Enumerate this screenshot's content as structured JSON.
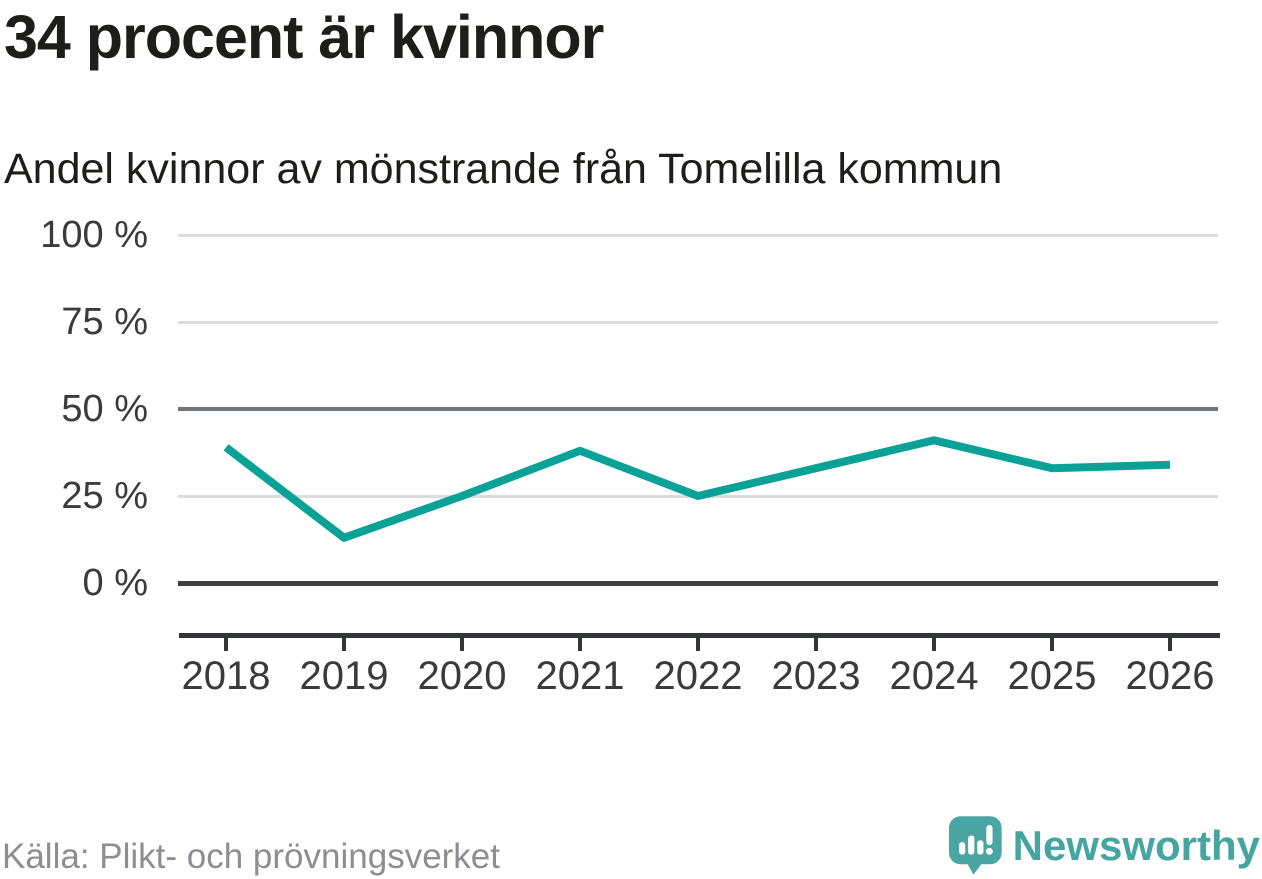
{
  "header": {
    "title": "34 procent är kvinnor",
    "subtitle": "Andel kvinnor av mönstrande från Tomelilla kommun"
  },
  "chart_data": {
    "type": "line",
    "title": "34 procent är kvinnor",
    "subtitle": "Andel kvinnor av mönstrande från Tomelilla kommun",
    "categories": [
      "2018",
      "2019",
      "2020",
      "2021",
      "2022",
      "2023",
      "2024",
      "2025",
      "2026"
    ],
    "values": [
      39,
      13,
      25,
      38,
      25,
      33,
      41,
      33,
      34
    ],
    "unit": "%",
    "xlabel": "",
    "ylabel": "",
    "ylim": [
      0,
      100
    ],
    "grid": "horizontal",
    "legend": "none",
    "y_ticks": [
      {
        "value": 100,
        "label": "100 %"
      },
      {
        "value": 75,
        "label": "75 %"
      },
      {
        "value": 50,
        "label": "50 %"
      },
      {
        "value": 25,
        "label": "25 %"
      },
      {
        "value": 0,
        "label": "0 %"
      }
    ],
    "line_color": "#0aa296",
    "emphasized_gridlines": [
      50,
      0
    ]
  },
  "footer": {
    "source": "Källa: Plikt- och prövningsverket",
    "brand": "Newsworthy",
    "brand_color": "#45a5a1"
  }
}
